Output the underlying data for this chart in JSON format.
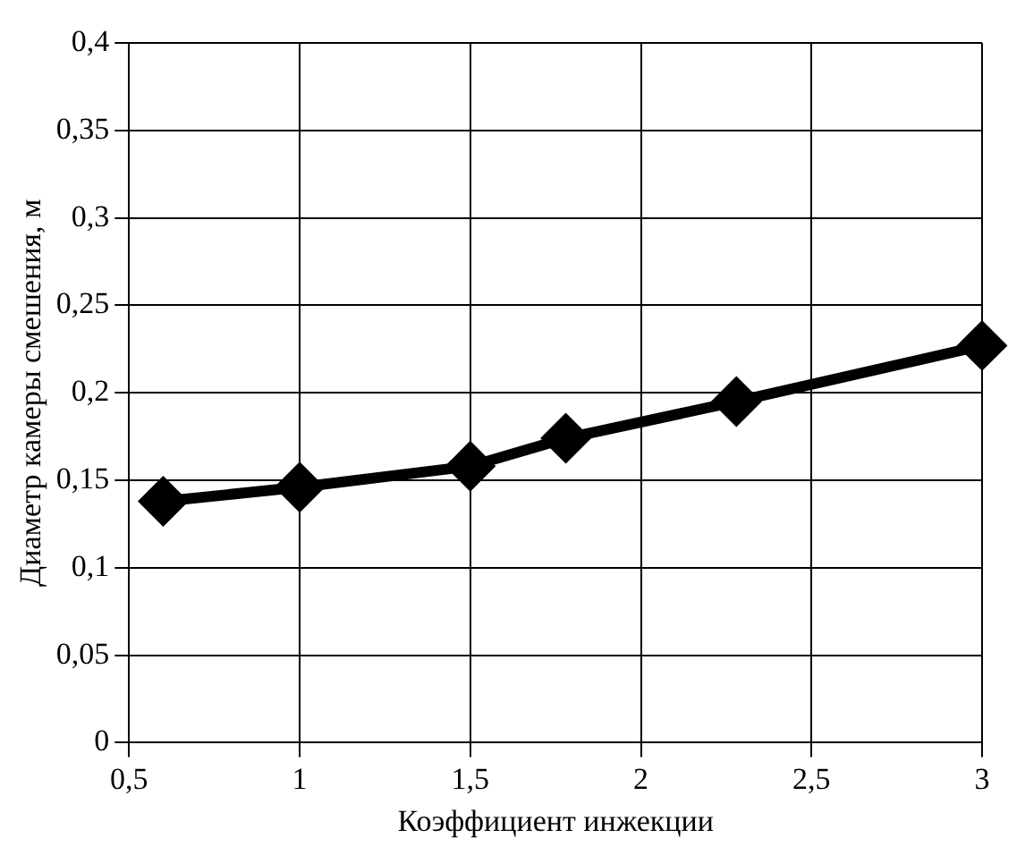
{
  "chart_data": {
    "type": "line",
    "xlabel": "Коэффициент инжекции",
    "ylabel": "Диаметр камеры смешения, м",
    "series": [
      {
        "color": "#000000",
        "x": [
          0.6,
          1.0,
          1.5,
          1.78,
          2.28,
          3.0
        ],
        "values": [
          0.138,
          0.146,
          0.158,
          0.174,
          0.195,
          0.227
        ]
      }
    ],
    "xlim": [
      0.5,
      3
    ],
    "xticks": [
      {
        "value": 0.5,
        "label": "0,5"
      },
      1,
      {
        "value": 1.5,
        "label": "1,5"
      },
      2,
      {
        "value": 2.5,
        "label": "2,5"
      },
      3
    ],
    "ylim": [
      0,
      0.4
    ],
    "yticks": [
      0,
      {
        "value": 0.05,
        "label": "0,05"
      },
      {
        "value": 0.1,
        "label": "0,1"
      },
      {
        "value": 0.15,
        "label": "0,15"
      },
      {
        "value": 0.2,
        "label": "0,2"
      },
      {
        "value": 0.25,
        "label": "0,25"
      },
      {
        "value": 0.3,
        "label": "0,3"
      },
      {
        "value": 0.35,
        "label": "0,35"
      },
      {
        "value": 0.4,
        "label": "0,4"
      }
    ],
    "grid": true,
    "marker": "diamond",
    "line_style": "solid",
    "legend": false
  }
}
